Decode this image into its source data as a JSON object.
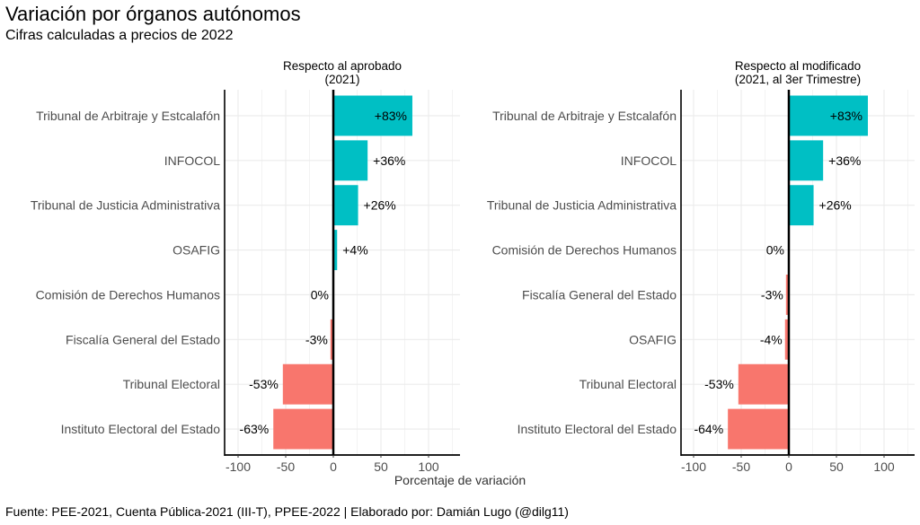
{
  "title": "Variación por órganos autónomos",
  "subtitle": "Cifras calculadas a precios de 2022",
  "caption": "Fuente: PEE-2021, Cuenta Pública-2021 (III-T), PPEE-2022 | Elaborado por: Damián Lugo (@dilg11)",
  "colors": {
    "positive": "#00BFC4",
    "negative": "#F8766D",
    "zero_line": "#000000",
    "grid": "#EBEBEB"
  },
  "chart_data": [
    {
      "type": "bar",
      "orientation": "horizontal",
      "title": "Respecto al aprobado\n(2021)",
      "title_lines": [
        "Respecto al aprobado",
        "(2021)"
      ],
      "xlabel": "Porcentaje de variación",
      "ylabel": "",
      "xlim": [
        -115,
        130
      ],
      "xticks": [
        -100,
        -50,
        0,
        50,
        100
      ],
      "xtick_labels": [
        "-100",
        "-50",
        "0",
        "50",
        "100"
      ],
      "grid": true,
      "categories": [
        "Tribunal de Arbitraje y Estcalafón",
        "INFOCOL",
        "Tribunal de Justicia Administrativa",
        "OSAFIG",
        "Comisión de Derechos Humanos",
        "Fiscalía General del Estado",
        "Tribunal Electoral",
        "Instituto Electoral del Estado"
      ],
      "values": [
        83,
        36,
        26,
        4,
        0,
        -3,
        -53,
        -63
      ],
      "labels": [
        "+83%",
        "+36%",
        "+26%",
        "+4%",
        "0%",
        "-3%",
        "-53%",
        "-63%"
      ]
    },
    {
      "type": "bar",
      "orientation": "horizontal",
      "title": "Respecto al modificado\n(2021, al 3er Trimestre)",
      "title_lines": [
        "Respecto al modificado",
        "(2021, al 3er Trimestre)"
      ],
      "xlabel": "Porcentaje de variación",
      "ylabel": "",
      "xlim": [
        -115,
        130
      ],
      "xticks": [
        -100,
        -50,
        0,
        50,
        100
      ],
      "xtick_labels": [
        "-100",
        "-50",
        "0",
        "50",
        "100"
      ],
      "grid": true,
      "categories": [
        "Tribunal de Arbitraje y Estcalafón",
        "INFOCOL",
        "Tribunal de Justicia Administrativa",
        "Comisión de Derechos Humanos",
        "Fiscalía General del Estado",
        "OSAFIG",
        "Tribunal Electoral",
        "Instituto Electoral del Estado"
      ],
      "values": [
        83,
        36,
        26,
        0,
        -3,
        -4,
        -53,
        -64
      ],
      "labels": [
        "+83%",
        "+36%",
        "+26%",
        "0%",
        "-3%",
        "-4%",
        "-53%",
        "-64%"
      ]
    }
  ]
}
